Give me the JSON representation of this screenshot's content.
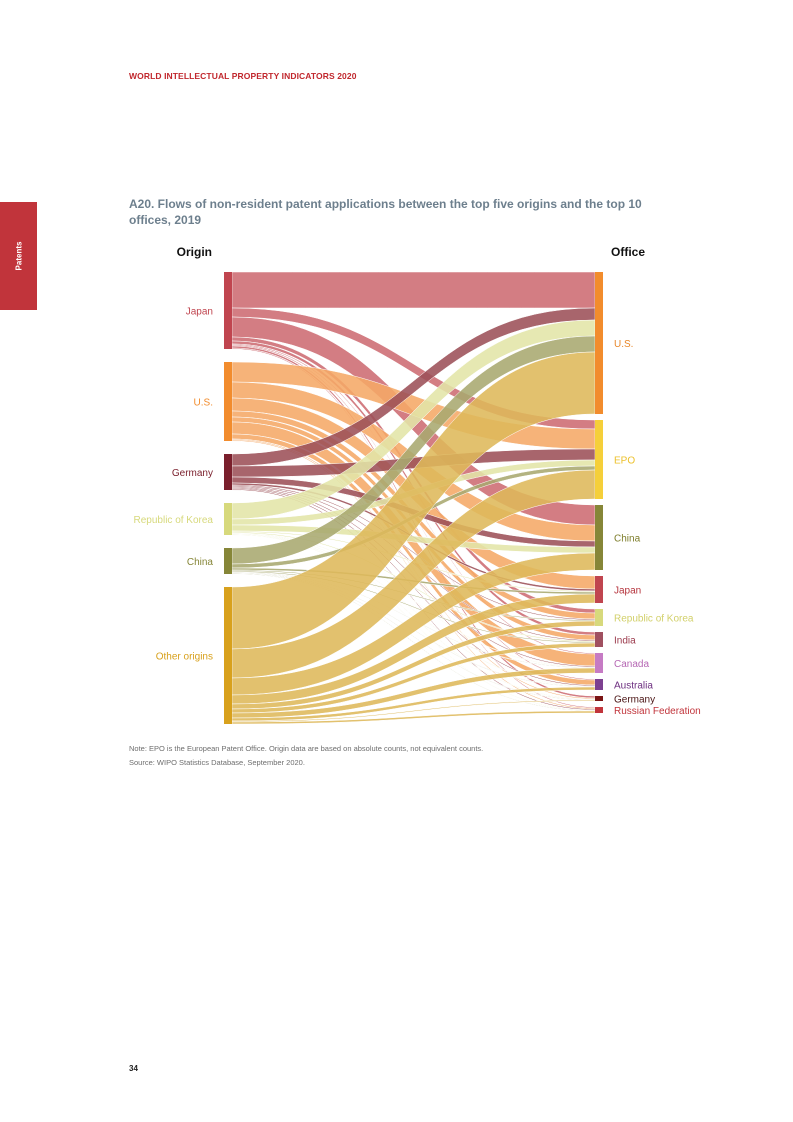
{
  "header": {
    "running_title": "WORLD INTELLECTUAL PROPERTY INDICATORS 2020"
  },
  "side_tab": {
    "label": "Patents",
    "color": "#c1343b"
  },
  "figure": {
    "title": "A20. Flows of non-resident patent applications between the top five origins and the top 10 offices, 2019"
  },
  "chart_data": {
    "type": "sankey",
    "left_heading": "Origin",
    "right_heading": "Office",
    "origins": [
      {
        "name": "Japan",
        "color": "#c0454f",
        "flow_color": "#cd6b72"
      },
      {
        "name": "U.S.",
        "color": "#f28c2d",
        "flow_color": "#f5a866"
      },
      {
        "name": "Germany",
        "color": "#7a1f2c",
        "flow_color": "#9c5058"
      },
      {
        "name": "Republic of Korea",
        "color": "#d7d97c",
        "flow_color": "#e3e5a7"
      },
      {
        "name": "China",
        "color": "#868638",
        "flow_color": "#a9a86f"
      },
      {
        "name": "Other origins",
        "color": "#d8a11d",
        "flow_color": "#deb85a"
      }
    ],
    "offices": [
      {
        "name": "U.S.",
        "color": "#f28c2d",
        "label_color": "#e8872a"
      },
      {
        "name": "EPO",
        "color": "#f5cf3a",
        "label_color": "#ecc02a"
      },
      {
        "name": "China",
        "color": "#868638",
        "label_color": "#7d7d2a"
      },
      {
        "name": "Japan",
        "color": "#c0454f",
        "label_color": "#b5343d"
      },
      {
        "name": "Republic of Korea",
        "color": "#d7d97c",
        "label_color": "#d2d06a"
      },
      {
        "name": "India",
        "color": "#a05060",
        "label_color": "#9b3a4c"
      },
      {
        "name": "Canada",
        "color": "#c67bc4",
        "label_color": "#b567b3"
      },
      {
        "name": "Australia",
        "color": "#7d4090",
        "label_color": "#6d2f80"
      },
      {
        "name": "Germany",
        "color": "#7a1414",
        "label_color": "#4a1414"
      },
      {
        "name": "Russian Federation",
        "color": "#c1343b",
        "label_color": "#c1343b"
      }
    ],
    "flows": [
      [
        "Japan",
        "U.S.",
        36
      ],
      [
        "Japan",
        "EPO",
        9
      ],
      [
        "Japan",
        "China",
        20
      ],
      [
        "Japan",
        "Japan",
        0
      ],
      [
        "Japan",
        "Republic of Korea",
        4
      ],
      [
        "Japan",
        "India",
        3
      ],
      [
        "Japan",
        "Canada",
        1
      ],
      [
        "Japan",
        "Australia",
        1
      ],
      [
        "Japan",
        "Germany",
        2
      ],
      [
        "Japan",
        "Russian Federation",
        1
      ],
      [
        "U.S.",
        "U.S.",
        0
      ],
      [
        "U.S.",
        "EPO",
        20
      ],
      [
        "U.S.",
        "China",
        16
      ],
      [
        "U.S.",
        "Japan",
        13
      ],
      [
        "U.S.",
        "Republic of Korea",
        6
      ],
      [
        "U.S.",
        "India",
        5
      ],
      [
        "U.S.",
        "Canada",
        12
      ],
      [
        "U.S.",
        "Australia",
        5
      ],
      [
        "U.S.",
        "Germany",
        1
      ],
      [
        "U.S.",
        "Russian Federation",
        1
      ],
      [
        "Germany",
        "U.S.",
        12
      ],
      [
        "Germany",
        "EPO",
        11
      ],
      [
        "Germany",
        "China",
        6
      ],
      [
        "Germany",
        "Japan",
        2
      ],
      [
        "Germany",
        "Republic of Korea",
        1
      ],
      [
        "Germany",
        "India",
        1
      ],
      [
        "Germany",
        "Canada",
        1
      ],
      [
        "Germany",
        "Australia",
        1
      ],
      [
        "Germany",
        "Germany",
        0
      ],
      [
        "Germany",
        "Russian Federation",
        1
      ],
      [
        "Republic of Korea",
        "U.S.",
        16
      ],
      [
        "Republic of Korea",
        "EPO",
        6
      ],
      [
        "Republic of Korea",
        "China",
        6
      ],
      [
        "Republic of Korea",
        "Japan",
        1
      ],
      [
        "Republic of Korea",
        "Republic of Korea",
        0
      ],
      [
        "Republic of Korea",
        "India",
        1
      ],
      [
        "Republic of Korea",
        "Canada",
        0.5
      ],
      [
        "Republic of Korea",
        "Australia",
        0.5
      ],
      [
        "Republic of Korea",
        "Germany",
        0.5
      ],
      [
        "Republic of Korea",
        "Russian Federation",
        0.5
      ],
      [
        "China",
        "U.S.",
        16
      ],
      [
        "China",
        "EPO",
        4
      ],
      [
        "China",
        "China",
        0
      ],
      [
        "China",
        "Japan",
        2
      ],
      [
        "China",
        "Republic of Korea",
        1
      ],
      [
        "China",
        "India",
        1
      ],
      [
        "China",
        "Canada",
        0.5
      ],
      [
        "China",
        "Australia",
        0.5
      ],
      [
        "China",
        "Germany",
        0.5
      ],
      [
        "China",
        "Russian Federation",
        0.5
      ],
      [
        "Other origins",
        "U.S.",
        62
      ],
      [
        "Other origins",
        "EPO",
        29
      ],
      [
        "Other origins",
        "China",
        17
      ],
      [
        "Other origins",
        "Japan",
        9
      ],
      [
        "Other origins",
        "Republic of Korea",
        5
      ],
      [
        "Other origins",
        "India",
        4
      ],
      [
        "Other origins",
        "Canada",
        5
      ],
      [
        "Other origins",
        "Australia",
        3
      ],
      [
        "Other origins",
        "Germany",
        1
      ],
      [
        "Other origins",
        "Russian Federation",
        2
      ]
    ]
  },
  "notes": {
    "line1": "Note: EPO is the European Patent Office. Origin data are based on absolute counts, not equivalent counts.",
    "line2": "Source: WIPO Statistics Database, September 2020."
  },
  "footer": {
    "page_number": "34"
  }
}
